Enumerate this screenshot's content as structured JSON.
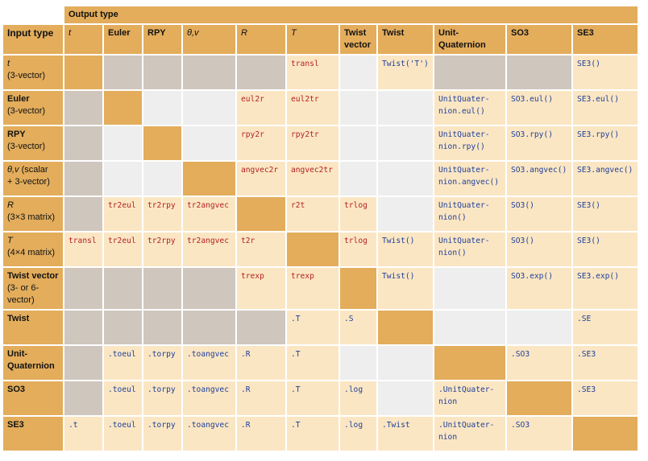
{
  "header": {
    "output_type": "Output type",
    "input_type": "Input type"
  },
  "columns": [
    {
      "label": "t",
      "italic": true
    },
    {
      "label": "Euler",
      "italic": false
    },
    {
      "label": "RPY",
      "italic": false
    },
    {
      "label": "θ,v",
      "italic": true
    },
    {
      "label": "R",
      "italic": true
    },
    {
      "label": "T",
      "italic": true
    },
    {
      "label": "Twist\nvector",
      "italic": false
    },
    {
      "label": "Twist",
      "italic": false
    },
    {
      "label": "Unit-\nQuaternion",
      "italic": false
    },
    {
      "label": "SO3",
      "italic": false
    },
    {
      "label": "SE3",
      "italic": false
    }
  ],
  "rows": [
    {
      "main": "t",
      "main_italic": true,
      "sub": "(3-vector)",
      "cells": [
        {
          "t": "",
          "bg": "dark"
        },
        {
          "t": "",
          "bg": "gray"
        },
        {
          "t": "",
          "bg": "gray"
        },
        {
          "t": "",
          "bg": "gray"
        },
        {
          "t": "",
          "bg": "gray"
        },
        {
          "t": "transl",
          "bg": "tan",
          "c": "red"
        },
        {
          "t": "",
          "bg": "light"
        },
        {
          "t": "Twist('T')",
          "bg": "tan",
          "c": "blue"
        },
        {
          "t": "",
          "bg": "gray"
        },
        {
          "t": "",
          "bg": "gray"
        },
        {
          "t": "SE3()",
          "bg": "tan",
          "c": "blue"
        }
      ]
    },
    {
      "main": "Euler",
      "main_italic": false,
      "sub": "(3-vector)",
      "cells": [
        {
          "t": "",
          "bg": "gray"
        },
        {
          "t": "",
          "bg": "dark"
        },
        {
          "t": "",
          "bg": "light"
        },
        {
          "t": "",
          "bg": "light"
        },
        {
          "t": "eul2r",
          "bg": "tan",
          "c": "red"
        },
        {
          "t": "eul2tr",
          "bg": "tan",
          "c": "red"
        },
        {
          "t": "",
          "bg": "light"
        },
        {
          "t": "",
          "bg": "light"
        },
        {
          "t": "UnitQuater-\nnion.eul()",
          "bg": "tan",
          "c": "blue"
        },
        {
          "t": "SO3.eul()",
          "bg": "tan",
          "c": "blue"
        },
        {
          "t": "SE3.eul()",
          "bg": "tan",
          "c": "blue"
        }
      ]
    },
    {
      "main": "RPY",
      "main_italic": false,
      "sub": "(3-vector)",
      "cells": [
        {
          "t": "",
          "bg": "gray"
        },
        {
          "t": "",
          "bg": "light"
        },
        {
          "t": "",
          "bg": "dark"
        },
        {
          "t": "",
          "bg": "light"
        },
        {
          "t": "rpy2r",
          "bg": "tan",
          "c": "red"
        },
        {
          "t": "rpy2tr",
          "bg": "tan",
          "c": "red"
        },
        {
          "t": "",
          "bg": "light"
        },
        {
          "t": "",
          "bg": "light"
        },
        {
          "t": "UnitQuater-\nnion.rpy()",
          "bg": "tan",
          "c": "blue"
        },
        {
          "t": "SO3.rpy()",
          "bg": "tan",
          "c": "blue"
        },
        {
          "t": "SE3.rpy()",
          "bg": "tan",
          "c": "blue"
        }
      ]
    },
    {
      "main": "θ,v",
      "main_italic": true,
      "main_tail": " (scalar",
      "sub": "+ 3-vector)",
      "cells": [
        {
          "t": "",
          "bg": "gray"
        },
        {
          "t": "",
          "bg": "light"
        },
        {
          "t": "",
          "bg": "light"
        },
        {
          "t": "",
          "bg": "dark"
        },
        {
          "t": "angvec2r",
          "bg": "tan",
          "c": "red"
        },
        {
          "t": "angvec2tr",
          "bg": "tan",
          "c": "red"
        },
        {
          "t": "",
          "bg": "light"
        },
        {
          "t": "",
          "bg": "light"
        },
        {
          "t": "UnitQuater-\nnion.angvec()",
          "bg": "tan",
          "c": "blue"
        },
        {
          "t": "SO3.angvec()",
          "bg": "tan",
          "c": "blue"
        },
        {
          "t": "SE3.angvec()",
          "bg": "tan",
          "c": "blue"
        }
      ]
    },
    {
      "main": "R",
      "main_italic": true,
      "sub": "(3×3 matrix)",
      "cells": [
        {
          "t": "",
          "bg": "gray"
        },
        {
          "t": "tr2eul",
          "bg": "tan",
          "c": "red"
        },
        {
          "t": "tr2rpy",
          "bg": "tan",
          "c": "red"
        },
        {
          "t": "tr2angvec",
          "bg": "tan",
          "c": "red"
        },
        {
          "t": "",
          "bg": "dark"
        },
        {
          "t": "r2t",
          "bg": "tan",
          "c": "red"
        },
        {
          "t": "trlog",
          "bg": "tan",
          "c": "red"
        },
        {
          "t": "",
          "bg": "light"
        },
        {
          "t": "UnitQuater-\nnion()",
          "bg": "tan",
          "c": "blue"
        },
        {
          "t": "SO3()",
          "bg": "tan",
          "c": "blue"
        },
        {
          "t": "SE3()",
          "bg": "tan",
          "c": "blue"
        }
      ]
    },
    {
      "main": "T",
      "main_italic": true,
      "sub": "(4×4 matrix)",
      "cells": [
        {
          "t": "transl",
          "bg": "tan",
          "c": "red"
        },
        {
          "t": "tr2eul",
          "bg": "tan",
          "c": "red"
        },
        {
          "t": "tr2rpy",
          "bg": "tan",
          "c": "red"
        },
        {
          "t": "tr2angvec",
          "bg": "tan",
          "c": "red"
        },
        {
          "t": "t2r",
          "bg": "tan",
          "c": "red"
        },
        {
          "t": "",
          "bg": "dark"
        },
        {
          "t": "trlog",
          "bg": "tan",
          "c": "red"
        },
        {
          "t": "Twist()",
          "bg": "tan",
          "c": "blue"
        },
        {
          "t": "UnitQuater-\nnion()",
          "bg": "tan",
          "c": "blue"
        },
        {
          "t": "SO3()",
          "bg": "tan",
          "c": "blue"
        },
        {
          "t": "SE3()",
          "bg": "tan",
          "c": "blue"
        }
      ]
    },
    {
      "main": "Twist vector",
      "main_italic": false,
      "sub": "(3- or 6-vector)",
      "cells": [
        {
          "t": "",
          "bg": "gray"
        },
        {
          "t": "",
          "bg": "gray"
        },
        {
          "t": "",
          "bg": "gray"
        },
        {
          "t": "",
          "bg": "gray"
        },
        {
          "t": "trexp",
          "bg": "tan",
          "c": "red"
        },
        {
          "t": "trexp",
          "bg": "tan",
          "c": "red"
        },
        {
          "t": "",
          "bg": "dark"
        },
        {
          "t": "Twist()",
          "bg": "tan",
          "c": "blue"
        },
        {
          "t": "",
          "bg": "light"
        },
        {
          "t": "SO3.exp()",
          "bg": "tan",
          "c": "blue"
        },
        {
          "t": "SE3.exp()",
          "bg": "tan",
          "c": "blue"
        }
      ]
    },
    {
      "main": "Twist",
      "main_italic": false,
      "sub": "",
      "cells": [
        {
          "t": "",
          "bg": "gray"
        },
        {
          "t": "",
          "bg": "gray"
        },
        {
          "t": "",
          "bg": "gray"
        },
        {
          "t": "",
          "bg": "gray"
        },
        {
          "t": "",
          "bg": "gray"
        },
        {
          "t": ".T",
          "bg": "tan",
          "c": "blue"
        },
        {
          "t": ".S",
          "bg": "tan",
          "c": "blue"
        },
        {
          "t": "",
          "bg": "dark"
        },
        {
          "t": "",
          "bg": "light"
        },
        {
          "t": "",
          "bg": "light"
        },
        {
          "t": ".SE",
          "bg": "tan",
          "c": "blue"
        }
      ]
    },
    {
      "main": "Unit-\nQuaternion",
      "main_italic": false,
      "sub": "",
      "cells": [
        {
          "t": "",
          "bg": "gray"
        },
        {
          "t": ".toeul",
          "bg": "tan",
          "c": "blue"
        },
        {
          "t": ".torpy",
          "bg": "tan",
          "c": "blue"
        },
        {
          "t": ".toangvec",
          "bg": "tan",
          "c": "blue"
        },
        {
          "t": ".R",
          "bg": "tan",
          "c": "blue"
        },
        {
          "t": ".T",
          "bg": "tan",
          "c": "blue"
        },
        {
          "t": "",
          "bg": "light"
        },
        {
          "t": "",
          "bg": "light"
        },
        {
          "t": "",
          "bg": "dark"
        },
        {
          "t": ".SO3",
          "bg": "tan",
          "c": "blue"
        },
        {
          "t": ".SE3",
          "bg": "tan",
          "c": "blue"
        }
      ]
    },
    {
      "main": "SO3",
      "main_italic": false,
      "sub": "",
      "cells": [
        {
          "t": "",
          "bg": "gray"
        },
        {
          "t": ".toeul",
          "bg": "tan",
          "c": "blue"
        },
        {
          "t": ".torpy",
          "bg": "tan",
          "c": "blue"
        },
        {
          "t": ".toangvec",
          "bg": "tan",
          "c": "blue"
        },
        {
          "t": ".R",
          "bg": "tan",
          "c": "blue"
        },
        {
          "t": ".T",
          "bg": "tan",
          "c": "blue"
        },
        {
          "t": ".log",
          "bg": "tan",
          "c": "blue"
        },
        {
          "t": "",
          "bg": "light"
        },
        {
          "t": ".UnitQuater-\nnion",
          "bg": "tan",
          "c": "blue"
        },
        {
          "t": "",
          "bg": "dark"
        },
        {
          "t": ".SE3",
          "bg": "tan",
          "c": "blue"
        }
      ]
    },
    {
      "main": "SE3",
      "main_italic": false,
      "sub": "",
      "cells": [
        {
          "t": ".t",
          "bg": "tan",
          "c": "blue"
        },
        {
          "t": ".toeul",
          "bg": "tan",
          "c": "blue"
        },
        {
          "t": ".torpy",
          "bg": "tan",
          "c": "blue"
        },
        {
          "t": ".toangvec",
          "bg": "tan",
          "c": "blue"
        },
        {
          "t": ".R",
          "bg": "tan",
          "c": "blue"
        },
        {
          "t": ".T",
          "bg": "tan",
          "c": "blue"
        },
        {
          "t": ".log",
          "bg": "tan",
          "c": "blue"
        },
        {
          "t": ".Twist",
          "bg": "tan",
          "c": "blue"
        },
        {
          "t": ".UnitQuater-\nnion",
          "bg": "tan",
          "c": "blue"
        },
        {
          "t": ".SO3",
          "bg": "tan",
          "c": "blue"
        },
        {
          "t": "",
          "bg": "dark"
        }
      ]
    }
  ],
  "colors": {
    "dark": "#e3ad5c",
    "tan": "#fbe6c3",
    "gray": "#cfc6bd",
    "light": "#eeeeee",
    "red": "#b22222",
    "blue": "#1d3f9b"
  }
}
